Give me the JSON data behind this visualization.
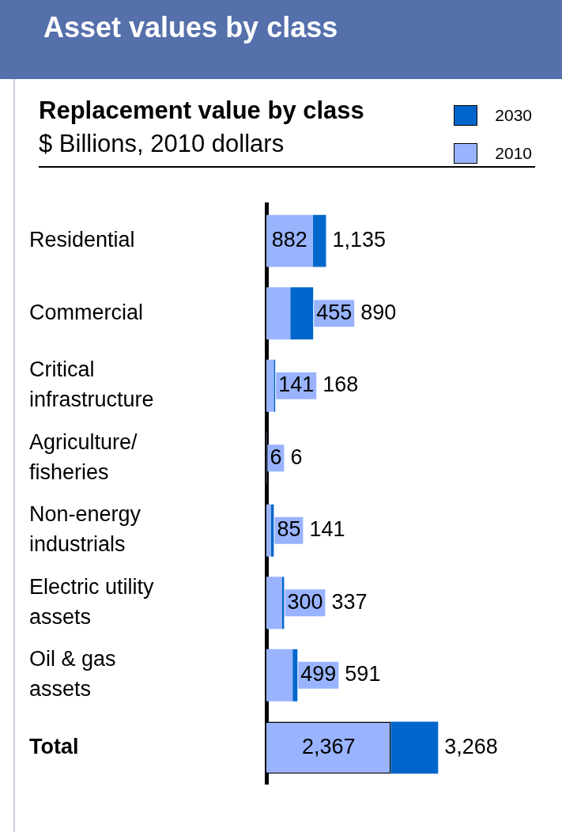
{
  "chart_data": {
    "type": "bar",
    "orientation": "horizontal",
    "stacked": true,
    "title": "Asset values by class",
    "subtitle": "Replacement value by class",
    "xlabel": "$ Billions, 2010 dollars",
    "categories": [
      "Residential",
      "Commercial",
      "Critical infrastructure",
      "Agriculture/ fisheries",
      "Non-energy industrials",
      "Electric utility assets",
      "Oil & gas assets",
      "Total"
    ],
    "series": [
      {
        "name": "2010",
        "color": "#99b3ff",
        "values": [
          882,
          455,
          141,
          6,
          85,
          300,
          499,
          2367
        ],
        "value_labels": [
          "882",
          "455",
          "141",
          "6",
          "85",
          "300",
          "499",
          "2,367"
        ]
      },
      {
        "name": "2030",
        "color": "#0066cc",
        "values": [
          253,
          435,
          27,
          0,
          56,
          37,
          92,
          901
        ]
      }
    ],
    "totals": [
      "1,135",
      "890",
      "168",
      "6",
      "141",
      "337",
      "591",
      "3,268"
    ],
    "legend": "top right",
    "tick_labels": "y",
    "grid": false
  }
}
